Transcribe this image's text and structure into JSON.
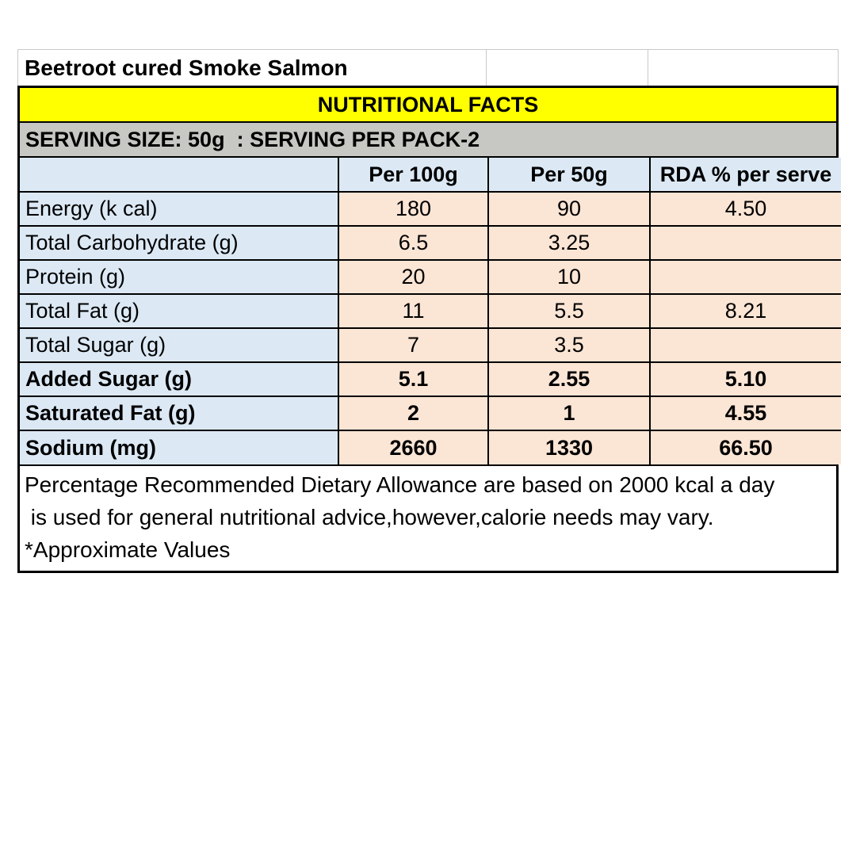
{
  "product": {
    "name": "Beetroot cured Smoke Salmon"
  },
  "banners": {
    "facts_title": "NUTRITIONAL FACTS",
    "serving_info": "SERVING SIZE: 50g  : SERVING PER PACK-2"
  },
  "table": {
    "columns": [
      "",
      "Per 100g",
      "Per 50g",
      "RDA % per serve"
    ],
    "rows": [
      {
        "label": "Energy (k cal)",
        "per100g": "180",
        "per50g": "90",
        "rda": "4.50"
      },
      {
        "label": "Total Carbohydrate (g)",
        "per100g": "6.5",
        "per50g": "3.25",
        "rda": ""
      },
      {
        "label": "Protein (g)",
        "per100g": "20",
        "per50g": "10",
        "rda": ""
      },
      {
        "label": "Total Fat (g)",
        "per100g": "11",
        "per50g": "5.5",
        "rda": "8.21"
      },
      {
        "label": "Total Sugar (g)",
        "per100g": "7",
        "per50g": "3.5",
        "rda": ""
      },
      {
        "label": "Added Sugar (g)",
        "per100g": "5.1",
        "per50g": "2.55",
        "rda": "5.10"
      },
      {
        "label": "Saturated Fat (g)",
        "per100g": "2",
        "per50g": "1",
        "rda": "4.55"
      },
      {
        "label": "Sodium (mg)",
        "per100g": "2660",
        "per50g": "1330",
        "rda": "66.50"
      }
    ]
  },
  "footnotes": {
    "line1": "Percentage Recommended Dietary Allowance are based on 2000 kcal a day",
    "line2": " is used for general nutritional advice,however,calorie needs may vary.",
    "line3": "*Approximate Values"
  },
  "colors": {
    "banner_yellow": "#FFFF00",
    "banner_gray": "#C7C7C3",
    "header_blue": "#DCE9F5",
    "value_peach": "#FBE5D5",
    "border_black": "#000000",
    "title_gridline_gray": "#C9C9C9"
  }
}
